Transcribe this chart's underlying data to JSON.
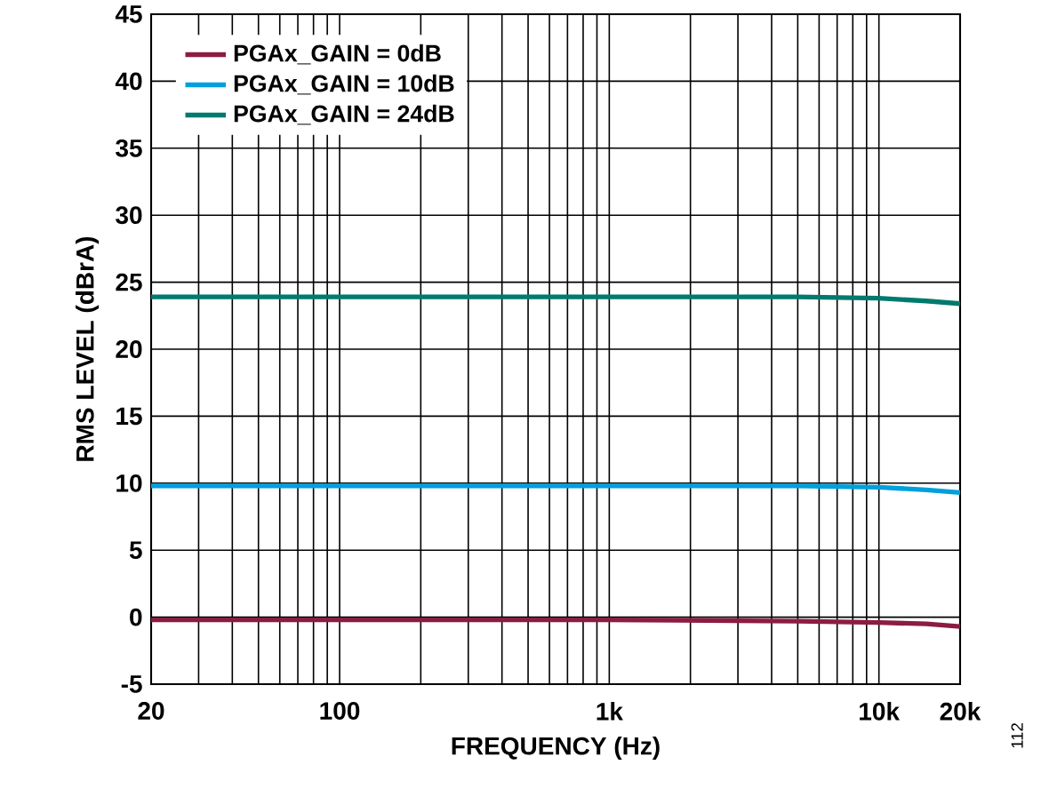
{
  "chart_data": {
    "type": "line",
    "xlabel": "FREQUENCY (Hz)",
    "ylabel": "RMS LEVEL (dBrA)",
    "annotations": [
      "112"
    ],
    "log": "x",
    "xlim": [
      20,
      20000
    ],
    "ylim": [
      -5,
      45
    ],
    "xticks": [
      20,
      {
        "value": 30,
        "label": null
      },
      {
        "value": 40,
        "label": null
      },
      {
        "value": 50,
        "label": null
      },
      {
        "value": 60,
        "label": null
      },
      {
        "value": 70,
        "label": null
      },
      {
        "value": 80,
        "label": null
      },
      {
        "value": 90,
        "label": null
      },
      100,
      {
        "value": 200,
        "label": null
      },
      {
        "value": 300,
        "label": null
      },
      {
        "value": 400,
        "label": null
      },
      {
        "value": 500,
        "label": null
      },
      {
        "value": 600,
        "label": null
      },
      {
        "value": 700,
        "label": null
      },
      {
        "value": 800,
        "label": null
      },
      {
        "value": 900,
        "label": null
      },
      {
        "value": 1000,
        "label": "1k"
      },
      {
        "value": 2000,
        "label": null
      },
      {
        "value": 3000,
        "label": null
      },
      {
        "value": 4000,
        "label": null
      },
      {
        "value": 5000,
        "label": null
      },
      {
        "value": 6000,
        "label": null
      },
      {
        "value": 7000,
        "label": null
      },
      {
        "value": 8000,
        "label": null
      },
      {
        "value": 9000,
        "label": null
      },
      {
        "value": 10000,
        "label": "10k"
      },
      {
        "value": 20000,
        "label": "20k"
      }
    ],
    "yticks": [
      -5,
      0,
      5,
      10,
      15,
      20,
      25,
      30,
      35,
      40,
      45
    ],
    "grid": true,
    "legend": "top left",
    "marker": "none",
    "line_style": "solid",
    "x": [
      20,
      50,
      100,
      1000,
      5000,
      10000,
      15000,
      20000
    ],
    "series": [
      {
        "name": "PGAx_GAIN = 0dB",
        "color": "#8c1d40",
        "values": [
          -0.2,
          -0.2,
          -0.2,
          -0.2,
          -0.3,
          -0.4,
          -0.5,
          -0.7
        ]
      },
      {
        "name": "PGAx_GAIN = 10dB",
        "color": "#00a0dc",
        "values": [
          9.8,
          9.8,
          9.8,
          9.8,
          9.8,
          9.7,
          9.5,
          9.3
        ]
      },
      {
        "name": "PGAx_GAIN = 24dB",
        "color": "#007a6e",
        "values": [
          23.9,
          23.9,
          23.9,
          23.9,
          23.9,
          23.8,
          23.6,
          23.4
        ]
      }
    ]
  }
}
